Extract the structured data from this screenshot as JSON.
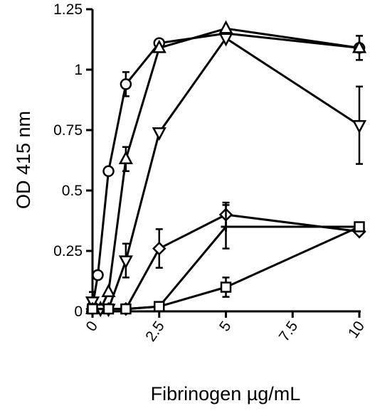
{
  "chart_data": {
    "type": "line",
    "title": "",
    "xlabel": "Fibrinogen µg/mL",
    "ylabel": "OD 415 nm",
    "xlim": [
      0,
      10
    ],
    "ylim": [
      0,
      1.25
    ],
    "x_ticks": [
      0,
      2.5,
      5,
      7.5,
      10
    ],
    "x_tick_labels": [
      "0",
      "2.5",
      "5",
      "7.5",
      "10"
    ],
    "y_ticks": [
      0,
      0.25,
      0.5,
      0.75,
      1,
      1.25
    ],
    "y_tick_labels": [
      "0",
      "0.25",
      "0.5",
      "0.75",
      "1",
      "1.25"
    ],
    "grid": false,
    "series": [
      {
        "marker": "circle",
        "points": [
          {
            "x": 0,
            "y": 0.02
          },
          {
            "x": 0.2,
            "y": 0.15
          },
          {
            "x": 0.6,
            "y": 0.58
          },
          {
            "x": 1.25,
            "y": 0.94,
            "err": 0.05
          },
          {
            "x": 2.5,
            "y": 1.11
          },
          {
            "x": 5,
            "y": 1.15
          },
          {
            "x": 10,
            "y": 1.09,
            "err": 0.05
          }
        ]
      },
      {
        "marker": "triangle-up",
        "points": [
          {
            "x": 0,
            "y": 0.01
          },
          {
            "x": 0.3,
            "y": 0.01
          },
          {
            "x": 0.6,
            "y": 0.08
          },
          {
            "x": 1.25,
            "y": 0.63,
            "err": 0.05
          },
          {
            "x": 2.5,
            "y": 1.09
          },
          {
            "x": 5,
            "y": 1.17
          },
          {
            "x": 10,
            "y": 1.09
          }
        ]
      },
      {
        "marker": "triangle-down",
        "points": [
          {
            "x": 0,
            "y": 0.04,
            "err": 0.04
          },
          {
            "x": 0.3,
            "y": 0.01
          },
          {
            "x": 0.6,
            "y": 0.01
          },
          {
            "x": 1.25,
            "y": 0.21,
            "err": 0.07
          },
          {
            "x": 2.5,
            "y": 0.74
          },
          {
            "x": 5,
            "y": 1.13
          },
          {
            "x": 10,
            "y": 0.77,
            "err": 0.16
          }
        ]
      },
      {
        "marker": "diamond",
        "points": [
          {
            "x": 0,
            "y": 0.01
          },
          {
            "x": 0.6,
            "y": 0.01
          },
          {
            "x": 1.25,
            "y": 0.01
          },
          {
            "x": 2.5,
            "y": 0.26,
            "err": 0.08
          },
          {
            "x": 5,
            "y": 0.4,
            "err": 0.05
          },
          {
            "x": 10,
            "y": 0.33
          }
        ]
      },
      {
        "marker": "cross",
        "points": [
          {
            "x": 0,
            "y": 0.01
          },
          {
            "x": 0.6,
            "y": 0.01
          },
          {
            "x": 1.25,
            "y": 0.01
          },
          {
            "x": 2.5,
            "y": 0.02
          },
          {
            "x": 5,
            "y": 0.35,
            "err": 0.09
          },
          {
            "x": 10,
            "y": 0.35
          }
        ]
      },
      {
        "marker": "square",
        "points": [
          {
            "x": 0,
            "y": 0.01
          },
          {
            "x": 0.6,
            "y": 0.01
          },
          {
            "x": 1.25,
            "y": 0.01
          },
          {
            "x": 2.5,
            "y": 0.02
          },
          {
            "x": 5,
            "y": 0.1,
            "err": 0.04
          },
          {
            "x": 10,
            "y": 0.35
          }
        ]
      }
    ]
  }
}
